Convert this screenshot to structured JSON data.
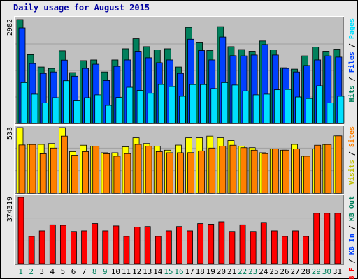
{
  "title": "Daily usage for August 2015",
  "colors": {
    "hits": "#00805C",
    "files": "#0040FF",
    "pages": "#00E0FF",
    "visits": "#FFFF00",
    "sites": "#FF8000",
    "kb": "#FF0000",
    "plot_bg": "#C0C0C0",
    "frame_bg": "#E8E8E8",
    "weekday_label": "#000000",
    "weekend_label": "#00805C"
  },
  "chart_data": [
    {
      "type": "bar",
      "panel": "hits-files-pages",
      "ymax_label": "2982",
      "ylim": [
        0,
        2982
      ],
      "grid": true,
      "legend_labels": [
        {
          "text": "Hits",
          "color": "#00805C"
        },
        {
          "text": "Files",
          "color": "#0040FF"
        },
        {
          "text": "Pages",
          "color": "#00E0FF"
        }
      ],
      "categories": [
        "1",
        "2",
        "3",
        "4",
        "5",
        "6",
        "7",
        "8",
        "9",
        "10",
        "11",
        "12",
        "13",
        "14",
        "15",
        "16",
        "17",
        "18",
        "19",
        "20",
        "21",
        "22",
        "23",
        "24",
        "25",
        "26",
        "27",
        "28",
        "29",
        "30",
        "31"
      ],
      "series": [
        {
          "name": "Hits",
          "values": [
            2982,
            1973,
            1620,
            1579,
            2084,
            1460,
            1802,
            1822,
            1478,
            1822,
            2142,
            2430,
            2203,
            2112,
            2142,
            1620,
            2759,
            2332,
            2091,
            2779,
            2203,
            2120,
            2072,
            2365,
            2112,
            1599,
            1559,
            1939,
            2191,
            2072,
            2132
          ]
        },
        {
          "name": "Files",
          "values": [
            2742,
            1719,
            1437,
            1478,
            1817,
            1355,
            1579,
            1700,
            1233,
            1639,
            1822,
            2072,
            1883,
            1742,
            1822,
            1437,
            2416,
            2091,
            1822,
            2480,
            1944,
            1939,
            1963,
            2263,
            1963,
            1579,
            1478,
            1663,
            1822,
            1939,
            1903
          ]
        },
        {
          "name": "Pages",
          "values": [
            1174,
            842,
            589,
            740,
            1226,
            650,
            740,
            822,
            520,
            747,
            1040,
            950,
            866,
            1120,
            1060,
            781,
            1117,
            1117,
            1003,
            1174,
            1103,
            935,
            822,
            842,
            968,
            978,
            760,
            717,
            1081,
            589,
            781
          ]
        }
      ]
    },
    {
      "type": "bar",
      "panel": "visits-sites",
      "ymax_label": "533",
      "ylim": [
        0,
        533
      ],
      "grid": true,
      "legend_labels": [
        {
          "text": "Visits",
          "color": "#C0C000"
        },
        {
          "text": "Sites",
          "color": "#FF8000"
        }
      ],
      "categories": [
        "1",
        "2",
        "3",
        "4",
        "5",
        "6",
        "7",
        "8",
        "9",
        "10",
        "11",
        "12",
        "13",
        "14",
        "15",
        "16",
        "17",
        "18",
        "19",
        "20",
        "21",
        "22",
        "23",
        "24",
        "25",
        "26",
        "27",
        "28",
        "29",
        "30",
        "31"
      ],
      "series": [
        {
          "name": "Visits",
          "values": [
            533,
            397,
            397,
            404,
            533,
            338,
            390,
            382,
            329,
            329,
            377,
            450,
            404,
            382,
            350,
            391,
            450,
            450,
            464,
            450,
            428,
            382,
            370,
            329,
            360,
            350,
            397,
            301,
            360,
            396,
            466
          ]
        },
        {
          "name": "Sites",
          "values": [
            392,
            396,
            321,
            367,
            464,
            309,
            338,
            382,
            321,
            301,
            322,
            397,
            382,
            338,
            329,
            329,
            330,
            344,
            367,
            383,
            390,
            370,
            350,
            322,
            360,
            350,
            360,
            301,
            390,
            396,
            466
          ]
        }
      ]
    },
    {
      "type": "bar",
      "panel": "kb",
      "ymax_label": "374319",
      "ylim": [
        0,
        374319
      ],
      "grid": true,
      "legend_labels": [
        {
          "text": "KB F",
          "color": "#FF0000"
        },
        {
          "text": "KB In",
          "color": "#0040FF"
        },
        {
          "text": "KB Out",
          "color": "#00805C"
        }
      ],
      "categories": [
        "1",
        "2",
        "3",
        "4",
        "5",
        "6",
        "7",
        "8",
        "9",
        "10",
        "11",
        "12",
        "13",
        "14",
        "15",
        "16",
        "17",
        "18",
        "19",
        "20",
        "21",
        "22",
        "23",
        "24",
        "25",
        "26",
        "27",
        "28",
        "29",
        "30",
        "31"
      ],
      "series": [
        {
          "name": "KB F",
          "values": [
            374319,
            154072,
            185421,
            219424,
            216713,
            182180,
            185422,
            226310,
            185422,
            213201,
            154072,
            206470,
            209881,
            154072,
            185421,
            209881,
            185421,
            226310,
            222857,
            236540,
            182180,
            219424,
            182180,
            233102,
            185421,
            154072,
            185421,
            154072,
            284614,
            284614,
            284614
          ]
        }
      ]
    }
  ],
  "weekend_days": [
    "1",
    "2",
    "8",
    "9",
    "15",
    "16",
    "22",
    "23",
    "29",
    "30"
  ]
}
